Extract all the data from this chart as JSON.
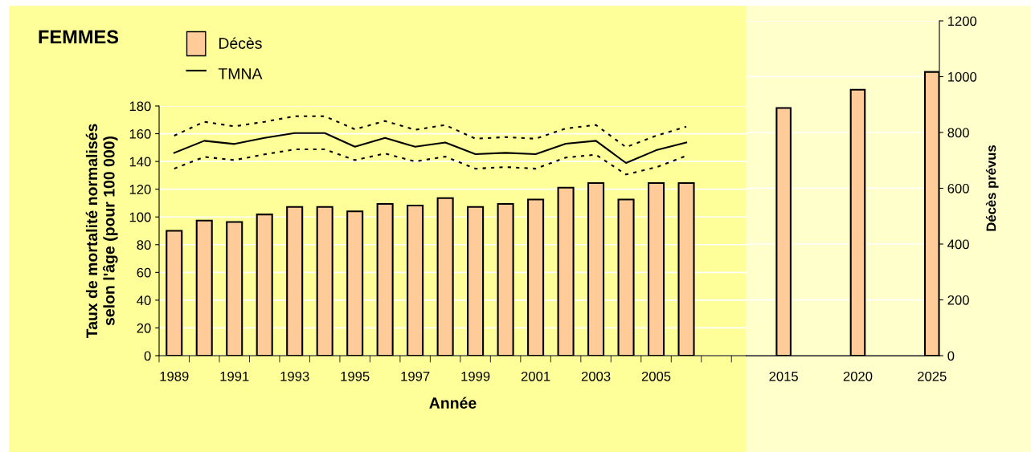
{
  "chart_data": [
    {
      "type": "bar",
      "title": "FEMMES",
      "xlabel": "Année",
      "ylabel": "Taux de mortalité normalisés\nselon l'âge (pour 100 000)",
      "categories": [
        "1989",
        null,
        "1991",
        null,
        "1993",
        null,
        "1995",
        null,
        "1997",
        null,
        "1999",
        null,
        "2001",
        null,
        "2003",
        null,
        "2005",
        null,
        null
      ],
      "ylim": [
        0,
        180
      ],
      "yticks": [
        0,
        20,
        40,
        60,
        80,
        100,
        120,
        140,
        160,
        180
      ],
      "grid": "y",
      "legend": "top left",
      "series": [
        {
          "name": "Décès",
          "color": "#ffcc99",
          "values": [
            90,
            97.4,
            96.4,
            101.8,
            107.2,
            107.2,
            104,
            109.4,
            108.2,
            113.6,
            107.2,
            109.4,
            112.6,
            121.1,
            124.4,
            112.6,
            124.4,
            124.4,
            null
          ]
        },
        {
          "name": "TMNA",
          "type": "line",
          "color": "#000000",
          "line_style": "solid",
          "values": [
            146.2,
            154.9,
            152.6,
            157,
            160.5,
            160.5,
            150.6,
            157,
            150.6,
            153.7,
            145.3,
            146.2,
            145.3,
            152.8,
            154.9,
            138.9,
            148.1,
            153.7,
            null
          ]
        },
        {
          "type": "line",
          "color": "#000000",
          "line_style": "dotted",
          "values": [
            158.6,
            168.6,
            165.3,
            168.6,
            172.6,
            172.6,
            163.2,
            169.2,
            162.8,
            166.3,
            156.4,
            157.6,
            156.4,
            163.8,
            166.3,
            150.3,
            158.6,
            165.1,
            null
          ]
        },
        {
          "type": "line",
          "color": "#000000",
          "line_style": "dotted",
          "values": [
            134.8,
            143.3,
            141,
            145.1,
            148.7,
            148.7,
            141,
            145.7,
            140,
            143.5,
            134.8,
            136,
            134.8,
            142.8,
            144.9,
            130.6,
            135.8,
            144.1,
            null
          ]
        }
      ]
    },
    {
      "type": "bar",
      "y2label": "Décès prévus",
      "categories": [
        null,
        null,
        "2015",
        null,
        null,
        null,
        null,
        "2020",
        null,
        null,
        null,
        null,
        "2025"
      ],
      "y2lim": [
        0,
        1200
      ],
      "y2ticks": [
        0,
        200,
        400,
        600,
        800,
        1000,
        1200
      ],
      "grid": "y",
      "series": [
        {
          "axis": "y2",
          "color": "#ffcc99",
          "values": [
            null,
            null,
            888,
            null,
            null,
            null,
            null,
            953,
            null,
            null,
            null,
            null,
            1017
          ]
        }
      ]
    }
  ]
}
